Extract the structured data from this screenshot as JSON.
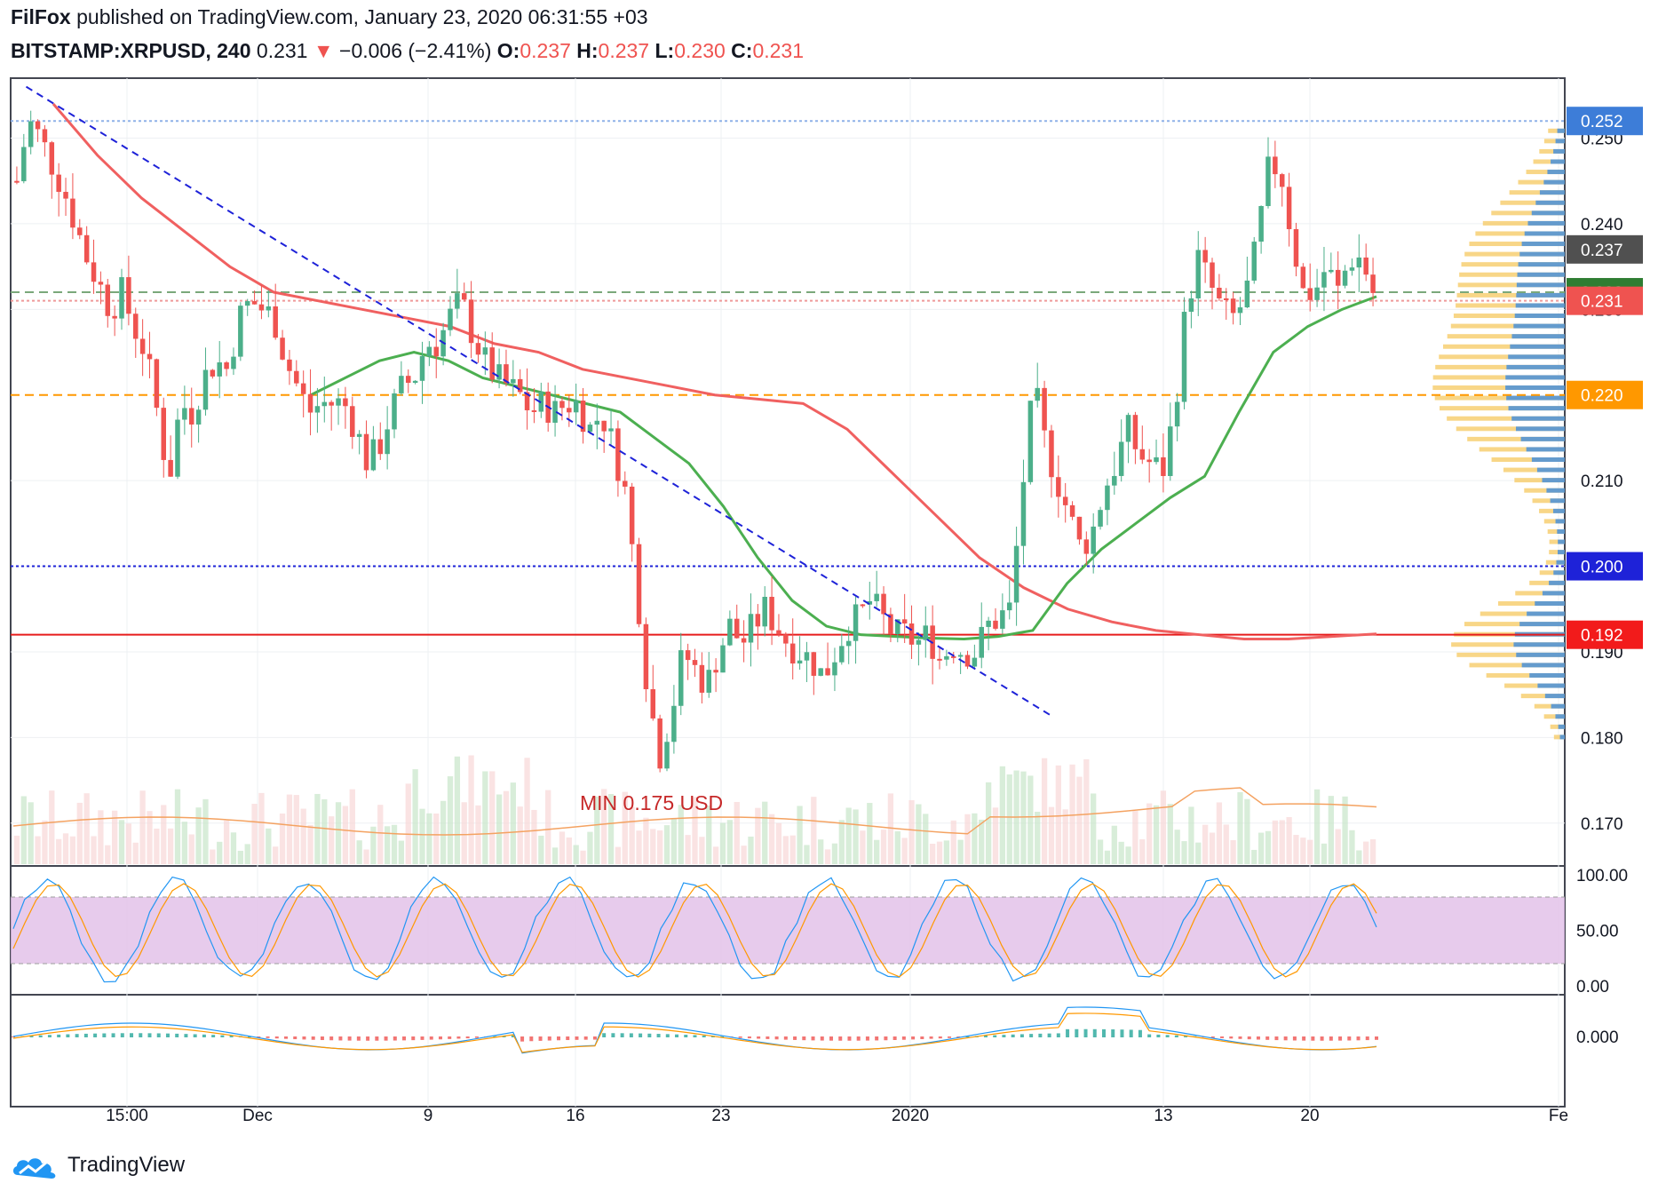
{
  "header": {
    "author": "FilFox",
    "published_text": "published on TradingView.com, January 23, 2020 06:31:55 +03",
    "symbol": "BITSTAMP:XRPUSD, 240",
    "last": "0.231",
    "change_arrow": "▼",
    "change": "−0.006 (−2.41%)",
    "o_label": "O:",
    "o_val": "0.237",
    "h_label": "H:",
    "h_val": "0.237",
    "l_label": "L:",
    "l_val": "0.230",
    "c_label": "C:",
    "c_val": "0.231"
  },
  "footer": {
    "brand": "TradingView",
    "logo_icon": "tradingview-cloud-icon"
  },
  "colors": {
    "up": "#26a69a",
    "up_candle": "#4caf8a",
    "down": "#ef5350",
    "ma_red": "#f06060",
    "ma_green": "#4caf50",
    "trend": "#1e22d8",
    "support_blue": "#1a1ae6",
    "level_red": "#e61c1c",
    "level_orange": "#ff9800",
    "rsi_fill": "#e1bee7",
    "vp_up": "#4a90d9",
    "vp_down": "#f6c85f"
  },
  "chart_data": {
    "type": "candlestick",
    "main": {
      "price_axis_ticks": [
        "0.250",
        "0.240",
        "0.230",
        "0.210",
        "0.200",
        "0.190",
        "0.180",
        "0.170"
      ],
      "ylim": [
        0.165,
        0.257
      ],
      "x_ticks": [
        "15:00",
        "Dec",
        "9",
        "16",
        "23",
        "2020",
        "13",
        "20",
        "Fe"
      ],
      "price_tags": [
        {
          "value": "0.252",
          "color": "#3d7dd8"
        },
        {
          "value": "0.237",
          "color": "#505050"
        },
        {
          "value": "0.232",
          "color": "#2e7d32"
        },
        {
          "value": "0.231",
          "color": "#ef5350"
        },
        {
          "value": "0.220",
          "color": "#ff9800"
        },
        {
          "value": "0.200",
          "color": "#1e22d8"
        },
        {
          "value": "0.192",
          "color": "#f21b1b"
        }
      ],
      "horizontal_levels": [
        {
          "value": 0.252,
          "style": "dotted",
          "color": "#8fb1e8"
        },
        {
          "value": 0.232,
          "style": "dashed",
          "color": "#7aa87a"
        },
        {
          "value": 0.231,
          "style": "dotted",
          "color": "#ef9a9a"
        },
        {
          "value": 0.22,
          "style": "dashed",
          "color": "#ff9800"
        },
        {
          "value": 0.2,
          "style": "dotted",
          "color": "#1e22d8"
        },
        {
          "value": 0.192,
          "style": "solid",
          "color": "#e61c1c"
        }
      ],
      "trendline": {
        "from": {
          "x_frac": 0.01,
          "y": 0.256
        },
        "to": {
          "x_frac": 0.67,
          "y": 0.1825
        }
      },
      "annotation": "MIN 0.175 USD",
      "price_path": [
        0.245,
        0.252,
        0.25,
        0.247,
        0.244,
        0.24,
        0.236,
        0.233,
        0.23,
        0.232,
        0.228,
        0.225,
        0.218,
        0.21,
        0.219,
        0.218,
        0.222,
        0.224,
        0.223,
        0.229,
        0.231,
        0.23,
        0.229,
        0.224,
        0.221,
        0.218,
        0.219,
        0.219,
        0.219,
        0.216,
        0.212,
        0.214,
        0.218,
        0.221,
        0.222,
        0.226,
        0.226,
        0.229,
        0.231,
        0.227,
        0.224,
        0.222,
        0.221,
        0.22,
        0.218,
        0.219,
        0.218,
        0.219,
        0.219,
        0.216,
        0.218,
        0.214,
        0.209,
        0.198,
        0.185,
        0.178,
        0.183,
        0.19,
        0.188,
        0.186,
        0.19,
        0.193,
        0.191,
        0.193,
        0.195,
        0.193,
        0.191,
        0.19,
        0.189,
        0.187,
        0.19,
        0.193,
        0.194,
        0.196,
        0.194,
        0.192,
        0.192,
        0.191,
        0.192,
        0.189,
        0.191,
        0.19,
        0.19,
        0.193,
        0.194,
        0.195,
        0.209,
        0.221,
        0.214,
        0.21,
        0.206,
        0.202,
        0.204,
        0.209,
        0.212,
        0.216,
        0.213,
        0.212,
        0.211,
        0.218,
        0.23,
        0.236,
        0.233,
        0.23,
        0.229,
        0.231,
        0.237,
        0.246,
        0.247,
        0.239,
        0.232,
        0.232,
        0.235,
        0.232,
        0.236,
        0.236,
        0.232
      ],
      "ma_red": [
        0.254,
        0.248,
        0.243,
        0.239,
        0.235,
        0.232,
        0.231,
        0.23,
        0.229,
        0.228,
        0.226,
        0.225,
        0.223,
        0.222,
        0.221,
        0.22,
        0.2195,
        0.219,
        0.216,
        0.211,
        0.206,
        0.201,
        0.1975,
        0.195,
        0.1935,
        0.1925,
        0.192,
        0.1915,
        0.1915,
        0.1918,
        0.1921
      ],
      "ma_green": [
        0.22,
        0.222,
        0.224,
        0.225,
        0.224,
        0.222,
        0.221,
        0.22,
        0.219,
        0.218,
        0.215,
        0.212,
        0.207,
        0.201,
        0.196,
        0.193,
        0.192,
        0.1918,
        0.1916,
        0.1915,
        0.1918,
        0.1925,
        0.198,
        0.202,
        0.205,
        0.208,
        0.2105,
        0.218,
        0.225,
        0.228,
        0.23,
        0.2315
      ]
    },
    "rsi_panel": {
      "ticks": [
        "100.00",
        "50.00",
        "0.00"
      ],
      "band": [
        20,
        80
      ],
      "last_k": 40,
      "last_d": 55
    },
    "macd_panel": {
      "ticks": [
        "0.000"
      ]
    }
  }
}
